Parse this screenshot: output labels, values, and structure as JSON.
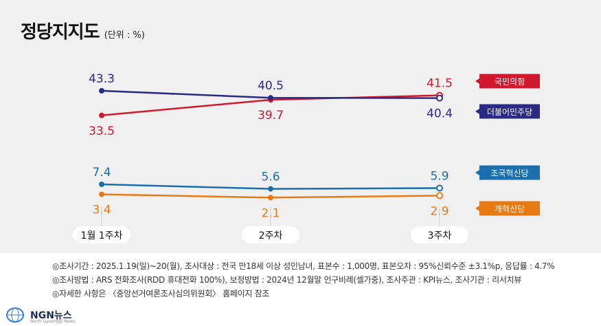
{
  "title": "정당지지도",
  "unit": "(단위 : %)",
  "chart_data": {
    "type": "line",
    "categories": [
      "1월 1주차",
      "2주차",
      "3주차"
    ],
    "series": [
      {
        "name": "국민의힘",
        "values": [
          33.5,
          39.7,
          41.5
        ],
        "color": "#d0192d",
        "labels": [
          "33.5",
          "39.7",
          "41.5"
        ],
        "label_pos": [
          "below",
          "below",
          "above"
        ]
      },
      {
        "name": "더불어민주당",
        "values": [
          43.3,
          40.5,
          40.4
        ],
        "color": "#2a2a86",
        "labels": [
          "43.3",
          "40.5",
          "40.4"
        ],
        "label_pos": [
          "above",
          "above",
          "below"
        ]
      },
      {
        "name": "조국혁신당",
        "values": [
          7.4,
          5.6,
          5.9
        ],
        "color": "#1b6fae",
        "labels": [
          "7.4",
          "5.6",
          "5.9"
        ],
        "label_pos": [
          "above",
          "above",
          "above"
        ]
      },
      {
        "name": "개혁신당",
        "values": [
          3.4,
          2.1,
          2.9
        ],
        "color": "#e87a14",
        "labels": [
          "3.4",
          "2.1",
          "2.9"
        ],
        "label_pos": [
          "below",
          "below",
          "below"
        ]
      }
    ]
  },
  "notes": [
    "◎조사기간 : 2025.1.19(일)~20(월), 조사대상 : 전국 만18세 이상 성인남녀, 표본수 : 1,000명, 표본오차 : 95%신뢰수준 ±3.1%p, 응답률 : 4.7%",
    "◎조사방법 : ARS 전화조사(RDD 휴대전화 100%), 보정방법 : 2024년 12월말 인구비례(셀가중), 조사주관 : KPI뉴스, 조사기관 : 리서치뷰",
    "◎자세한 사항은 〈중앙선거여론조사심의위원회〉 홈페이지 참조"
  ],
  "logo": {
    "name": "NGN뉴스",
    "sub": "North Gyeonggi News"
  }
}
